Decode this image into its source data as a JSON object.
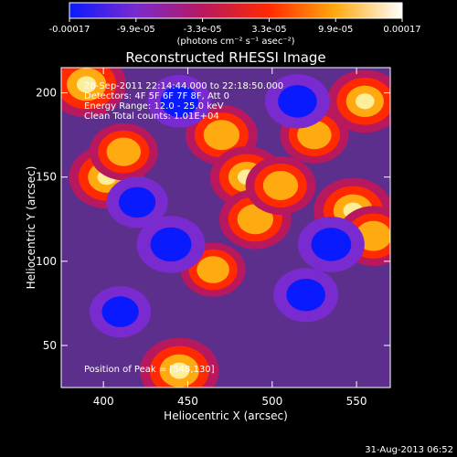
{
  "chart_data": {
    "type": "heatmap",
    "title": "Reconstructed RHESSI Image",
    "xlabel": "Heliocentric X (arcsec)",
    "ylabel": "Heliocentric Y (arcsec)",
    "xlim": [
      375,
      570
    ],
    "ylim": [
      25,
      215
    ],
    "x_ticks": [
      400,
      450,
      500,
      550
    ],
    "y_ticks": [
      50,
      100,
      150,
      200
    ],
    "colorbar": {
      "ticks": [
        "-0.00017",
        "-9.9e-05",
        "-3.3e-05",
        "3.3e-05",
        "9.9e-05",
        "0.00017"
      ],
      "units": "(photons cm⁻² s⁻¹ asec⁻²)",
      "colors": [
        "#0a1aff",
        "#7a2bcf",
        "#b8185e",
        "#ff2a00",
        "#ffaa10",
        "#ffffff"
      ]
    },
    "annotations": [
      "28-Sep-2011 22:14:44.000 to 22:18:50.000",
      "Detectors: 4F 5F 6F 7F 8F, Att 0",
      "Energy Range: 12.0 - 25.0 keV",
      "Clean    Total counts: 1.01E+04",
      "Position of Peak = [548,130]"
    ],
    "grid": false,
    "sources": [
      {
        "x": 390,
        "y": 205,
        "value": 1.0
      },
      {
        "x": 402,
        "y": 150,
        "value": 0.9
      },
      {
        "x": 412,
        "y": 165,
        "value": 0.7
      },
      {
        "x": 445,
        "y": 35,
        "value": 1.0
      },
      {
        "x": 465,
        "y": 95,
        "value": 0.6
      },
      {
        "x": 470,
        "y": 175,
        "value": 0.8
      },
      {
        "x": 485,
        "y": 150,
        "value": 0.85
      },
      {
        "x": 490,
        "y": 125,
        "value": 0.8
      },
      {
        "x": 505,
        "y": 145,
        "value": 0.75
      },
      {
        "x": 525,
        "y": 175,
        "value": 0.7
      },
      {
        "x": 548,
        "y": 130,
        "value": 1.0
      },
      {
        "x": 555,
        "y": 195,
        "value": 0.9
      },
      {
        "x": 560,
        "y": 115,
        "value": 0.8
      },
      {
        "x": 440,
        "y": 110,
        "value": -0.7
      },
      {
        "x": 515,
        "y": 195,
        "value": -0.6
      },
      {
        "x": 535,
        "y": 110,
        "value": -0.65
      },
      {
        "x": 520,
        "y": 80,
        "value": -0.6
      },
      {
        "x": 445,
        "y": 195,
        "value": -0.55
      },
      {
        "x": 420,
        "y": 135,
        "value": -0.5
      },
      {
        "x": 410,
        "y": 70,
        "value": -0.5
      }
    ]
  },
  "footer": {
    "timestamp": "31-Aug-2013 06:52"
  }
}
